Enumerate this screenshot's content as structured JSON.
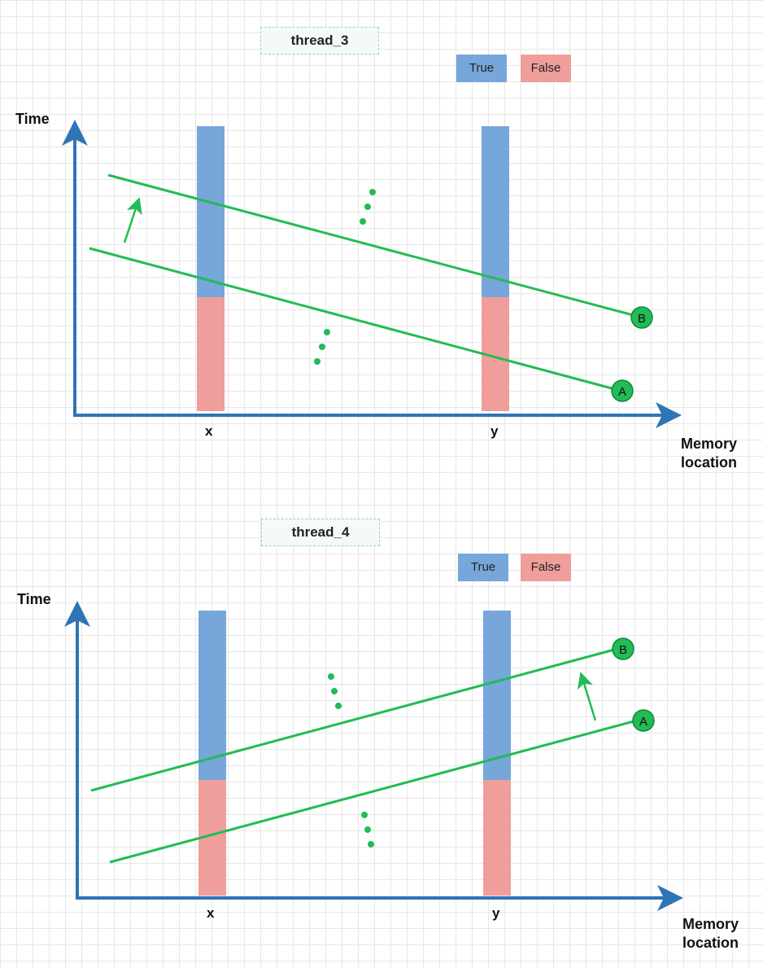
{
  "colors": {
    "true": "#77a6da",
    "false": "#ef9e9b",
    "axis": "#2e75b6",
    "line": "#22bb55",
    "node_fill": "#22bb55",
    "node_stroke": "#0f8a3a"
  },
  "legend": {
    "true_label": "True",
    "false_label": "False"
  },
  "axes": {
    "y_label": "Time",
    "x_label_line1": "Memory",
    "x_label_line2": "location",
    "x_ticks": [
      "x",
      "y"
    ]
  },
  "panels": [
    {
      "title": "thread_3",
      "line_direction": "descending",
      "lines": [
        {
          "label": "A"
        },
        {
          "label": "B"
        }
      ],
      "progress_arrow": "A to B (upward, near left)",
      "ellipsis_count": 2
    },
    {
      "title": "thread_4",
      "line_direction": "ascending",
      "lines": [
        {
          "label": "A"
        },
        {
          "label": "B"
        }
      ],
      "progress_arrow": "A to B (upward, near right)",
      "ellipsis_count": 2
    }
  ]
}
